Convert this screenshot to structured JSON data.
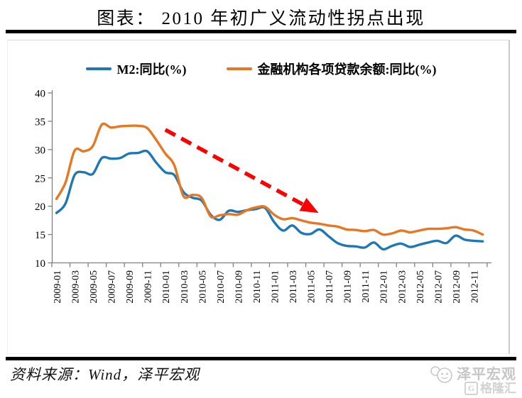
{
  "title": "图表： 2010 年初广义流动性拐点出现",
  "legend": [
    {
      "label": "M2:同比(%)",
      "color": "#1F77B4"
    },
    {
      "label": "金融机构各项贷款余额:同比(%)",
      "color": "#E87722"
    }
  ],
  "chart_data": {
    "type": "line",
    "title": "图表： 2010 年初广义流动性拐点出现",
    "x": [
      "2009-01",
      "2009-02",
      "2009-03",
      "2009-04",
      "2009-05",
      "2009-06",
      "2009-07",
      "2009-08",
      "2009-09",
      "2009-10",
      "2009-11",
      "2009-12",
      "2010-01",
      "2010-02",
      "2010-03",
      "2010-04",
      "2010-05",
      "2010-06",
      "2010-07",
      "2010-08",
      "2010-09",
      "2010-10",
      "2010-11",
      "2010-12",
      "2011-01",
      "2011-02",
      "2011-03",
      "2011-04",
      "2011-05",
      "2011-06",
      "2011-07",
      "2011-08",
      "2011-09",
      "2011-10",
      "2011-11",
      "2011-12",
      "2012-01",
      "2012-02",
      "2012-03",
      "2012-04",
      "2012-05",
      "2012-06",
      "2012-07",
      "2012-08",
      "2012-09",
      "2012-10",
      "2012-11",
      "2012-12"
    ],
    "series": [
      {
        "name": "M2:同比(%)",
        "color": "#1F77B4",
        "values": [
          18.8,
          20.5,
          25.5,
          26.0,
          25.7,
          28.5,
          28.4,
          28.5,
          29.3,
          29.4,
          29.7,
          27.7,
          26.0,
          25.5,
          22.5,
          21.5,
          21.0,
          18.5,
          17.6,
          19.2,
          19.0,
          19.3,
          19.5,
          19.7,
          17.2,
          15.7,
          16.6,
          15.3,
          15.1,
          15.9,
          14.7,
          13.5,
          13.0,
          12.9,
          12.7,
          13.6,
          12.4,
          13.0,
          13.4,
          12.8,
          13.2,
          13.6,
          13.9,
          13.5,
          14.8,
          14.1,
          13.9,
          13.8
        ]
      },
      {
        "name": "金融机构各项贷款余额:同比(%)",
        "color": "#E87722",
        "values": [
          21.3,
          24.2,
          29.8,
          29.7,
          30.6,
          34.4,
          33.9,
          34.1,
          34.2,
          34.2,
          33.8,
          31.7,
          29.3,
          27.2,
          21.8,
          22.0,
          21.5,
          18.2,
          18.4,
          18.6,
          18.5,
          19.3,
          19.8,
          19.9,
          18.5,
          17.7,
          17.9,
          17.5,
          17.1,
          16.9,
          16.6,
          16.4,
          15.9,
          15.8,
          15.6,
          15.8,
          15.0,
          15.2,
          15.7,
          15.4,
          15.7,
          16.0,
          16.0,
          16.1,
          16.3,
          15.9,
          15.7,
          15.0
        ]
      }
    ],
    "ylim": [
      10,
      40
    ],
    "yticks": [
      10,
      15,
      20,
      25,
      30,
      35,
      40
    ],
    "xtick_every": 2,
    "grid": false,
    "legend_position": "top",
    "annotation_arrow": {
      "style": "dashed",
      "color": "#FF0000",
      "from": {
        "month": "2010-01",
        "value": 33.5
      },
      "to": {
        "month": "2011-05",
        "value": 19.6
      }
    }
  },
  "source_note": "资料来源：Wind，泽平宏观",
  "watermark": {
    "brand": "泽平宏观",
    "platform": "格隆汇",
    "platform_letter": "G"
  },
  "colors": {
    "m2_line": "#1F77B4",
    "loan_line": "#E87722",
    "arrow": "#FF0000",
    "axis": "#808080",
    "rule": "#000000"
  }
}
